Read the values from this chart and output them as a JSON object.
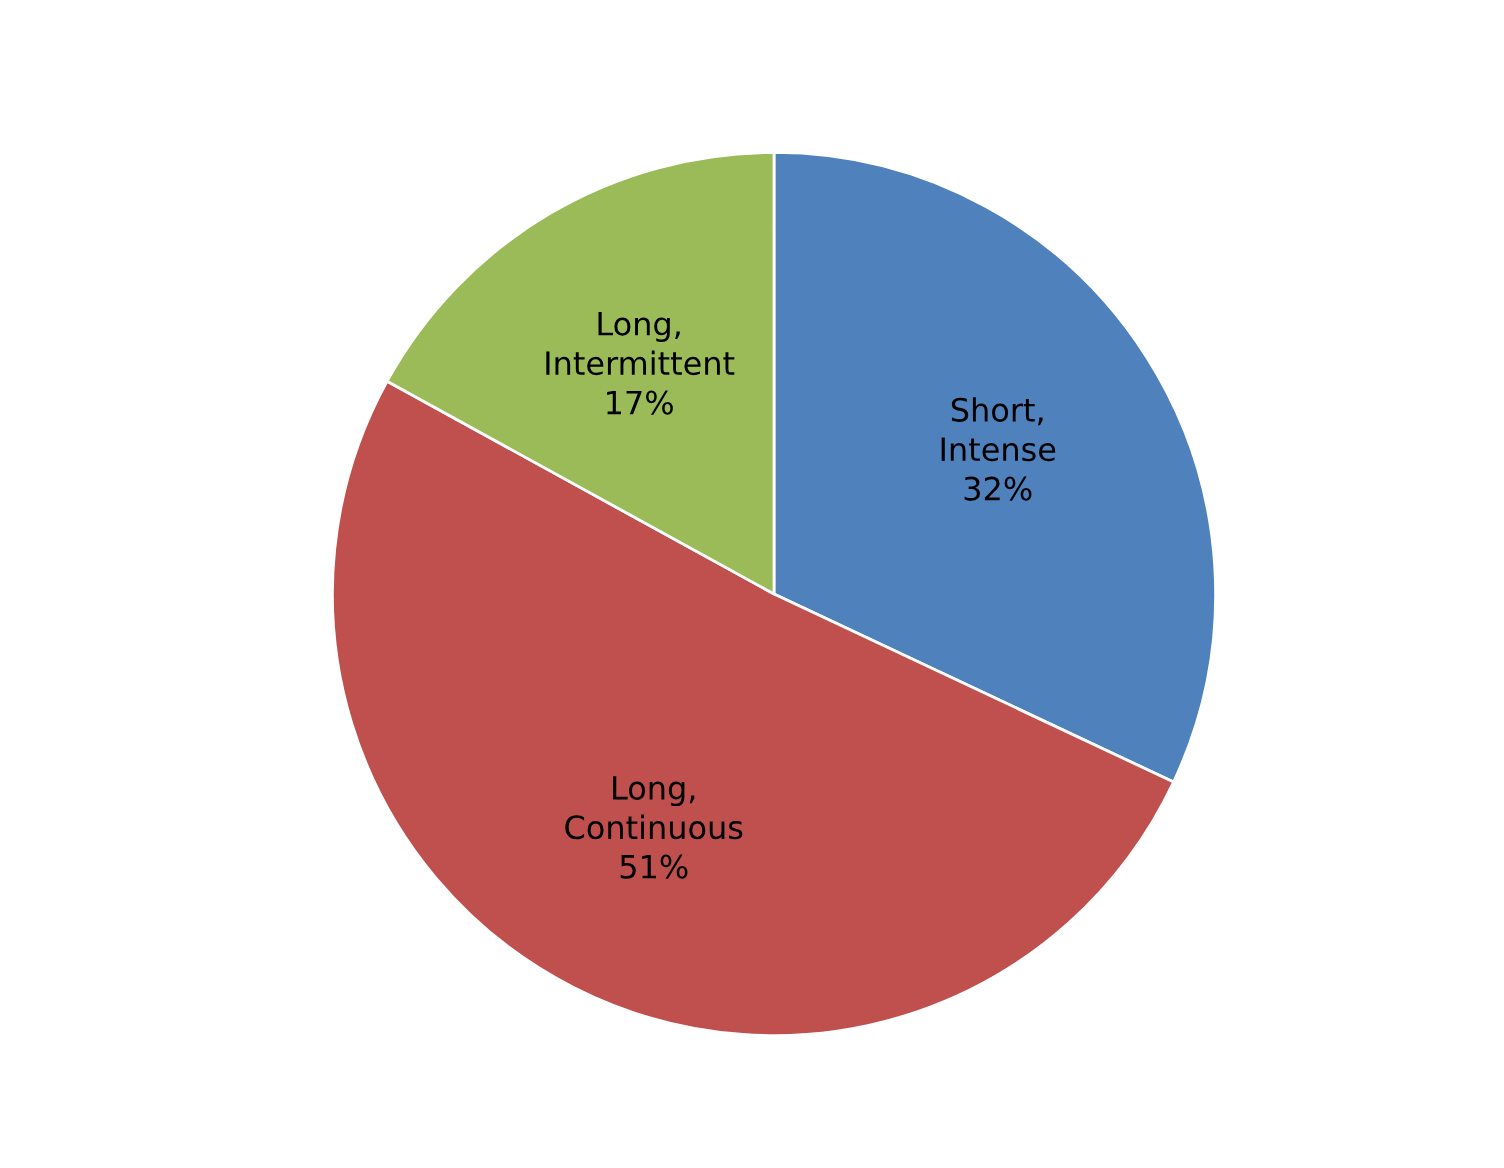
{
  "chart_data": {
    "type": "pie",
    "categories": [
      "Short, Intense",
      "Long, Continuous",
      "Long, Intermittent"
    ],
    "values": [
      32,
      51,
      17
    ],
    "colors": [
      "#4f81bd",
      "#c0504d",
      "#9bbb59"
    ],
    "value_labels": [
      "32%",
      "51%",
      "17%"
    ],
    "legend": false
  }
}
